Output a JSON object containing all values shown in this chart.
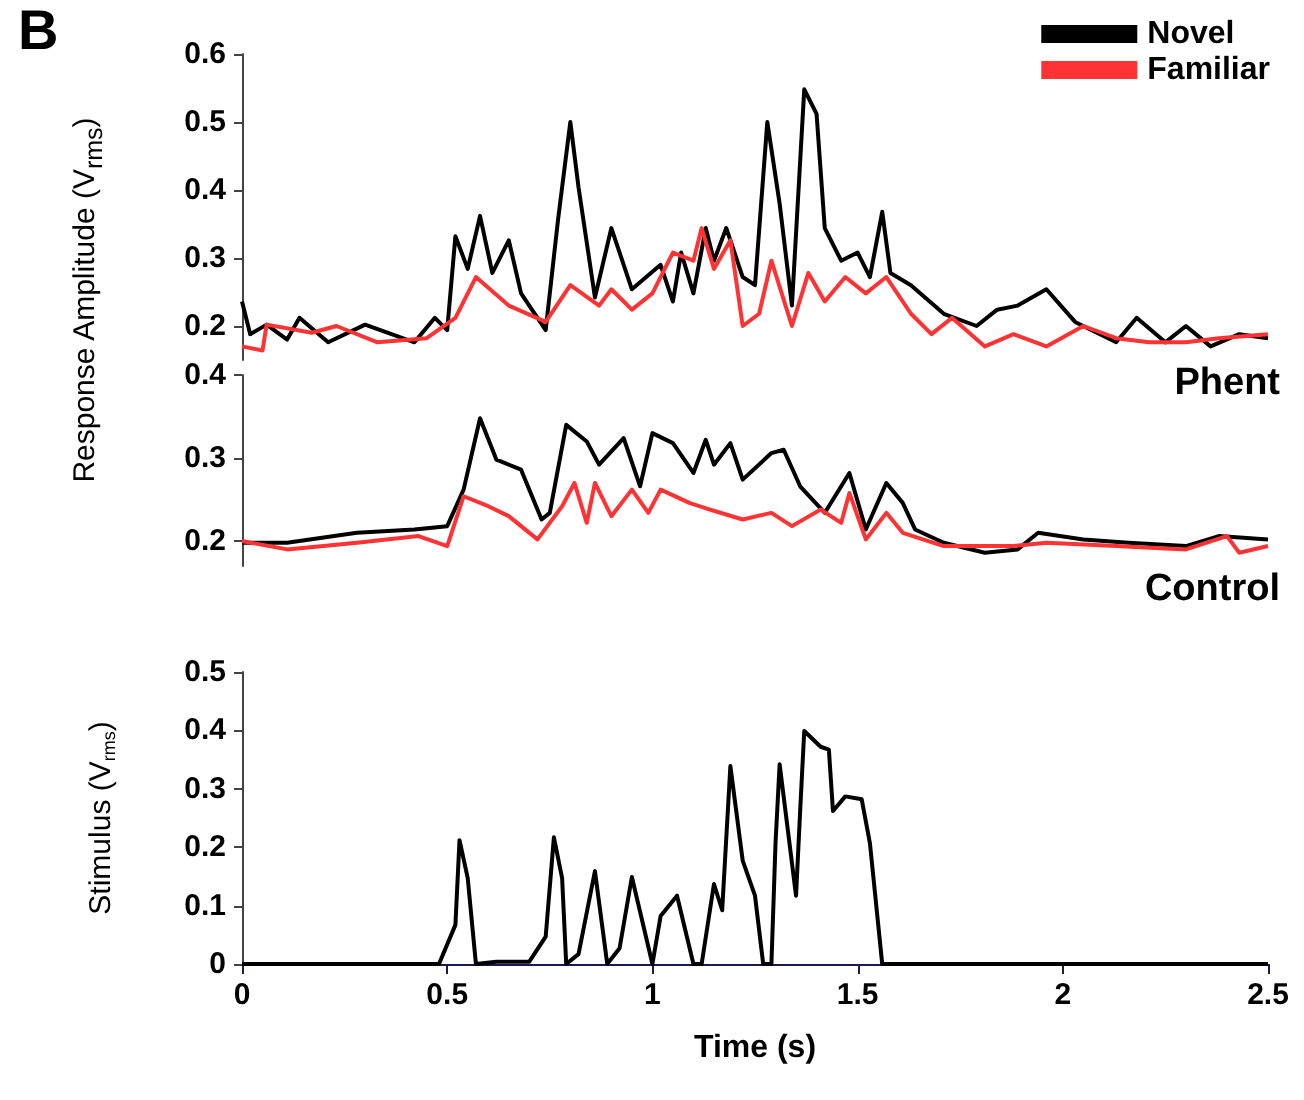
{
  "chart_data": [
    {
      "type": "line",
      "title": "B",
      "ylabel": "Response Amplitude (V$_{rms}$)",
      "annotations": [
        "Phent"
      ],
      "legend": "top right",
      "marker": "none",
      "tick_labels": "y",
      "xlim": [
        0,
        2.5
      ],
      "ylim": [
        0.15,
        0.6
      ],
      "yticks": [
        0.2,
        0.3,
        0.4,
        0.5,
        0.6
      ],
      "series": [
        {
          "name": "Novel",
          "color": "#000000",
          "x": [
            0,
            0.02,
            0.06,
            0.11,
            0.14,
            0.21,
            0.3,
            0.42,
            0.47,
            0.5,
            0.52,
            0.55,
            0.58,
            0.61,
            0.65,
            0.68,
            0.74,
            0.77,
            0.8,
            0.82,
            0.86,
            0.9,
            0.95,
            1.02,
            1.05,
            1.07,
            1.1,
            1.13,
            1.15,
            1.18,
            1.22,
            1.25,
            1.28,
            1.31,
            1.34,
            1.37,
            1.4,
            1.42,
            1.46,
            1.5,
            1.53,
            1.56,
            1.58,
            1.63,
            1.71,
            1.79,
            1.84,
            1.89,
            1.96,
            2.03,
            2.13,
            2.18,
            2.25,
            2.3,
            2.36,
            2.43,
            2.5
          ],
          "values": [
            0.236,
            0.188,
            0.202,
            0.18,
            0.212,
            0.176,
            0.202,
            0.176,
            0.212,
            0.194,
            0.332,
            0.284,
            0.362,
            0.278,
            0.326,
            0.248,
            0.194,
            0.356,
            0.5,
            0.404,
            0.242,
            0.344,
            0.254,
            0.29,
            0.236,
            0.308,
            0.248,
            0.344,
            0.296,
            0.344,
            0.272,
            0.26,
            0.5,
            0.38,
            0.23,
            0.548,
            0.512,
            0.344,
            0.296,
            0.308,
            0.272,
            0.368,
            0.278,
            0.26,
            0.218,
            0.2,
            0.224,
            0.23,
            0.254,
            0.206,
            0.176,
            0.212,
            0.176,
            0.2,
            0.17,
            0.188,
            0.182
          ]
        },
        {
          "name": "Familiar",
          "color": "#ff3333",
          "x": [
            0,
            0.05,
            0.06,
            0.17,
            0.23,
            0.33,
            0.45,
            0.52,
            0.57,
            0.65,
            0.74,
            0.8,
            0.87,
            0.9,
            0.95,
            1.0,
            1.05,
            1.1,
            1.12,
            1.15,
            1.19,
            1.22,
            1.26,
            1.29,
            1.34,
            1.38,
            1.42,
            1.47,
            1.52,
            1.57,
            1.63,
            1.68,
            1.73,
            1.81,
            1.88,
            1.96,
            2.05,
            2.13,
            2.21,
            2.3,
            2.38,
            2.5
          ],
          "values": [
            0.17,
            0.164,
            0.202,
            0.19,
            0.2,
            0.176,
            0.182,
            0.212,
            0.272,
            0.23,
            0.206,
            0.26,
            0.23,
            0.254,
            0.224,
            0.248,
            0.308,
            0.296,
            0.344,
            0.284,
            0.326,
            0.2,
            0.218,
            0.296,
            0.2,
            0.278,
            0.236,
            0.272,
            0.248,
            0.272,
            0.218,
            0.188,
            0.212,
            0.17,
            0.188,
            0.17,
            0.2,
            0.182,
            0.176,
            0.176,
            0.182,
            0.188
          ]
        }
      ]
    },
    {
      "type": "line",
      "annotations": [
        "Control"
      ],
      "marker": "none",
      "tick_labels": "y",
      "xlim": [
        0,
        2.5
      ],
      "ylim": [
        0.17,
        0.4
      ],
      "yticks": [
        0.2,
        0.3,
        0.4
      ],
      "series": [
        {
          "color": "#000000",
          "x": [
            0,
            0.11,
            0.28,
            0.42,
            0.5,
            0.54,
            0.58,
            0.62,
            0.68,
            0.73,
            0.75,
            0.79,
            0.84,
            0.87,
            0.93,
            0.97,
            1.0,
            1.05,
            1.1,
            1.13,
            1.15,
            1.19,
            1.22,
            1.29,
            1.32,
            1.36,
            1.42,
            1.48,
            1.52,
            1.57,
            1.61,
            1.64,
            1.71,
            1.81,
            1.89,
            1.94,
            2.05,
            2.16,
            2.3,
            2.38,
            2.5
          ],
          "values": [
            0.198,
            0.198,
            0.21,
            0.214,
            0.218,
            0.262,
            0.348,
            0.298,
            0.286,
            0.226,
            0.234,
            0.34,
            0.32,
            0.292,
            0.324,
            0.266,
            0.33,
            0.318,
            0.282,
            0.322,
            0.292,
            0.318,
            0.274,
            0.306,
            0.31,
            0.266,
            0.234,
            0.282,
            0.214,
            0.27,
            0.246,
            0.214,
            0.198,
            0.186,
            0.19,
            0.21,
            0.202,
            0.198,
            0.194,
            0.206,
            0.202
          ]
        },
        {
          "color": "#ff3333",
          "x": [
            0,
            0.11,
            0.28,
            0.43,
            0.5,
            0.54,
            0.6,
            0.65,
            0.72,
            0.78,
            0.81,
            0.84,
            0.86,
            0.9,
            0.95,
            0.99,
            1.02,
            1.09,
            1.14,
            1.22,
            1.29,
            1.34,
            1.41,
            1.46,
            1.48,
            1.52,
            1.57,
            1.61,
            1.71,
            1.88,
            1.96,
            2.13,
            2.3,
            2.4,
            2.43,
            2.5
          ],
          "values": [
            0.2,
            0.19,
            0.198,
            0.206,
            0.194,
            0.254,
            0.242,
            0.23,
            0.202,
            0.242,
            0.27,
            0.222,
            0.27,
            0.23,
            0.262,
            0.234,
            0.262,
            0.246,
            0.238,
            0.226,
            0.234,
            0.218,
            0.238,
            0.222,
            0.258,
            0.202,
            0.234,
            0.21,
            0.194,
            0.194,
            0.198,
            0.194,
            0.19,
            0.206,
            0.186,
            0.194
          ]
        }
      ]
    },
    {
      "type": "line",
      "ylabel": "Stimulus (V$_{rms}$)",
      "xlabel": "Time (s)",
      "marker": "none",
      "xlim": [
        0,
        2.5
      ],
      "xticks": [
        0,
        0.5,
        1,
        1.5,
        2,
        2.5
      ],
      "ylim": [
        0,
        0.5
      ],
      "yticks": [
        0,
        0.1,
        0.2,
        0.3,
        0.4,
        0.5
      ],
      "series": [
        {
          "color": "#000000",
          "x": [
            0,
            0.48,
            0.52,
            0.53,
            0.55,
            0.57,
            0.62,
            0.7,
            0.74,
            0.76,
            0.78,
            0.79,
            0.82,
            0.86,
            0.89,
            0.92,
            0.95,
            1.0,
            1.02,
            1.06,
            1.1,
            1.12,
            1.15,
            1.17,
            1.19,
            1.22,
            1.25,
            1.27,
            1.29,
            1.3,
            1.31,
            1.35,
            1.36,
            1.37,
            1.41,
            1.43,
            1.44,
            1.47,
            1.51,
            1.53,
            1.56,
            2.5
          ],
          "values": [
            0,
            0,
            0.067,
            0.212,
            0.147,
            0,
            0.004,
            0.004,
            0.047,
            0.217,
            0.147,
            0,
            0.017,
            0.159,
            0,
            0.027,
            0.149,
            0,
            0.082,
            0.117,
            0,
            0,
            0.137,
            0.092,
            0.339,
            0.177,
            0.117,
            0,
            0,
            0.207,
            0.342,
            0.117,
            0.262,
            0.399,
            0.372,
            0.367,
            0.262,
            0.287,
            0.282,
            0.207,
            0,
            0
          ]
        }
      ]
    }
  ]
}
